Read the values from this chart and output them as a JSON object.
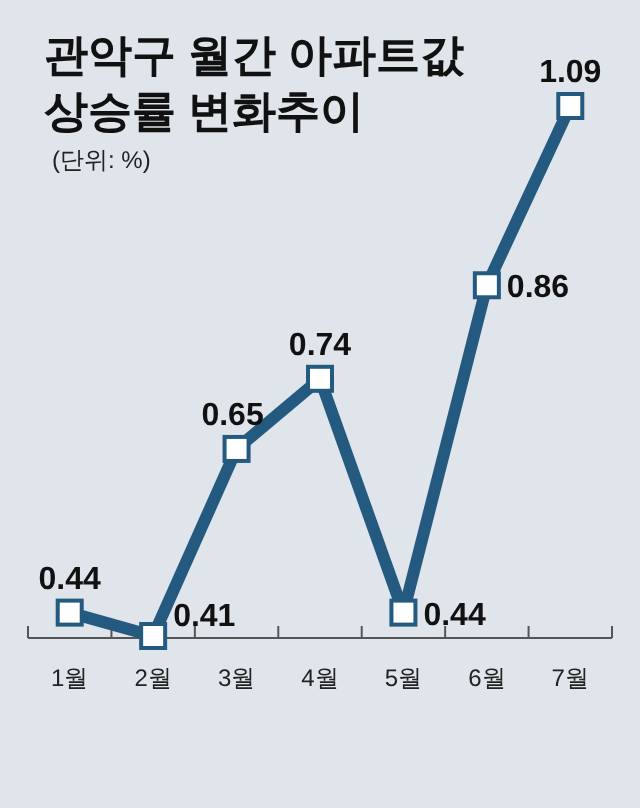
{
  "chart_data": {
    "type": "line",
    "title": "관악구 월간 아파트값 상승률 변화추이",
    "subtitle": "(단위: %)",
    "categories": [
      "1월",
      "2월",
      "3월",
      "4월",
      "5월",
      "6월",
      "7월"
    ],
    "series": [
      {
        "color": "#245a80",
        "values": [
          0.44,
          0.41,
          0.65,
          0.74,
          0.44,
          0.86,
          1.09
        ]
      }
    ],
    "data_labels": true,
    "marker": "square"
  }
}
